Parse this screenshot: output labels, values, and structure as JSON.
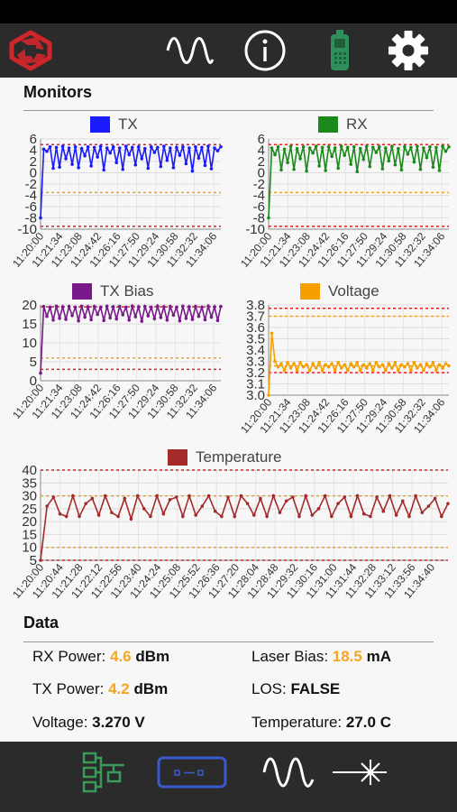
{
  "header": {
    "icons": [
      "logo-icon",
      "waveform-icon",
      "info-icon",
      "device-icon",
      "gear-icon"
    ]
  },
  "monitors": {
    "title": "Monitors"
  },
  "chart_data": [
    {
      "type": "line",
      "legend": "TX",
      "color": "#1a1aff",
      "ylim": [
        -10,
        6
      ],
      "yticks": [
        -10,
        -8,
        -6,
        -4,
        -2,
        0,
        2,
        4,
        6
      ],
      "thresholds": {
        "red": [
          5,
          -9.5
        ],
        "orange": [
          -3.5
        ]
      },
      "xticks": [
        "11:20:00",
        "11:21:34",
        "11:23:08",
        "11:24:42",
        "11:26:16",
        "11:27:50",
        "11:29:24",
        "11:30:58",
        "11:32:32",
        "11:34:06"
      ],
      "values": [
        -8,
        4.2,
        3.8,
        4.6,
        0.8,
        4.5,
        1,
        4.7,
        2.5,
        4.4,
        1.5,
        4.6,
        0.9,
        4.3,
        3,
        4.6,
        1.2,
        4.5,
        2.8,
        4.7,
        0.5,
        4.4,
        3.5,
        4.6,
        1.8,
        4.4,
        0.6,
        4.7,
        3.2,
        4.5,
        1.4,
        4.6,
        2.5,
        4.3,
        0.8,
        4.6,
        3.6,
        4.5,
        1.1,
        4.7,
        2.2,
        4.4,
        0.9,
        4.5,
        3.1,
        4.6,
        1.6,
        4.4,
        0.3,
        4.6,
        2.6,
        4.5,
        1.3,
        4.7,
        0.7,
        4.4,
        3.9,
        4.6
      ]
    },
    {
      "type": "line",
      "legend": "RX",
      "color": "#1a8a1a",
      "ylim": [
        -10,
        6
      ],
      "yticks": [
        -10,
        -8,
        -6,
        -4,
        -2,
        0,
        2,
        4,
        6
      ],
      "thresholds": {
        "red": [
          5,
          -9.5
        ],
        "orange": [
          -3.5
        ]
      },
      "xticks": [
        "11:20:00",
        "11:21:34",
        "11:23:08",
        "11:24:42",
        "11:26:16",
        "11:27:50",
        "11:29:24",
        "11:30:58",
        "11:32:32",
        "11:34:06"
      ],
      "values": [
        -8,
        4.4,
        3.2,
        4.6,
        0.5,
        4.2,
        1.8,
        4.7,
        0.6,
        4.3,
        2.5,
        4.6,
        0.3,
        4.4,
        3.5,
        4.7,
        1.2,
        4.5,
        0.4,
        4.6,
        2.9,
        4.4,
        0.8,
        4.7,
        3.1,
        4.5,
        1.5,
        4.6,
        0.2,
        4.3,
        2.4,
        4.7,
        1.1,
        4.5,
        3.6,
        4.6,
        0.7,
        4.4,
        2.1,
        4.7,
        1.4,
        4.3,
        0.5,
        4.6,
        3.3,
        4.5,
        1.9,
        4.7,
        0.6,
        4.4,
        2.7,
        4.6,
        1,
        4.5,
        0.4,
        4.7,
        3.8,
        4.6
      ]
    },
    {
      "type": "line",
      "legend": "TX Bias",
      "color": "#7a1a8a",
      "ylim": [
        0,
        20
      ],
      "yticks": [
        0,
        5,
        10,
        15,
        20
      ],
      "thresholds": {
        "red": [
          19.5,
          3
        ],
        "orange": [
          6
        ]
      },
      "xticks": [
        "11:20:00",
        "11:21:34",
        "11:23:08",
        "11:24:42",
        "11:26:16",
        "11:27:50",
        "11:29:24",
        "11:30:58",
        "11:32:32",
        "11:34:06"
      ],
      "values": [
        2,
        19.6,
        17,
        19.4,
        16,
        19.7,
        16.5,
        19.5,
        16.2,
        19.6,
        17.2,
        19.4,
        15.8,
        19.7,
        16.8,
        19.5,
        16.1,
        19.6,
        17.5,
        19.4,
        15.9,
        19.7,
        16.6,
        19.5,
        16.3,
        19.6,
        17.4,
        19.4,
        16,
        19.7,
        16.9,
        19.5,
        15.7,
        19.6,
        17.1,
        19.4,
        16.4,
        19.7,
        16.7,
        19.5,
        16,
        19.6,
        17.3,
        19.4,
        15.8,
        19.7,
        16.5,
        19.5,
        16.2,
        19.6,
        17,
        19.4,
        16.1,
        19.7,
        16.8,
        19.5,
        15.9,
        19.6
      ]
    },
    {
      "type": "line",
      "legend": "Voltage",
      "color": "#f5a000",
      "ylim": [
        3.0,
        3.8
      ],
      "yticks": [
        3.0,
        3.1,
        3.2,
        3.3,
        3.4,
        3.5,
        3.6,
        3.7,
        3.8
      ],
      "thresholds": {
        "red": [
          3.77,
          3.2
        ],
        "orange": [
          3.7,
          3.26
        ]
      },
      "xticks": [
        "11:20:00",
        "11:21:34",
        "11:23:08",
        "11:24:42",
        "11:26:16",
        "11:27:50",
        "11:29:24",
        "11:30:58",
        "11:32:32",
        "11:34:06"
      ],
      "values": [
        3.0,
        3.55,
        3.3,
        3.25,
        3.28,
        3.22,
        3.29,
        3.24,
        3.28,
        3.22,
        3.29,
        3.25,
        3.27,
        3.22,
        3.28,
        3.24,
        3.29,
        3.22,
        3.27,
        3.25,
        3.28,
        3.22,
        3.29,
        3.24,
        3.27,
        3.22,
        3.28,
        3.25,
        3.29,
        3.22,
        3.27,
        3.24,
        3.28,
        3.22,
        3.29,
        3.25,
        3.27,
        3.22,
        3.28,
        3.24,
        3.29,
        3.22,
        3.27,
        3.25,
        3.28,
        3.22,
        3.29,
        3.24,
        3.27,
        3.22,
        3.28,
        3.25,
        3.29,
        3.22,
        3.27,
        3.24,
        3.28,
        3.26
      ]
    },
    {
      "type": "line",
      "legend": "Temperature",
      "color": "#a52a2a",
      "ylim": [
        5,
        40
      ],
      "yticks": [
        5,
        10,
        15,
        20,
        25,
        30,
        35,
        40
      ],
      "thresholds": {
        "red": [
          40,
          5
        ],
        "orange": [
          30,
          10
        ]
      },
      "xticks": [
        "11:20:00",
        "11:20:44",
        "11:21:28",
        "11:22:12",
        "11:22:56",
        "11:23:40",
        "11:24:24",
        "11:25:08",
        "11:25:52",
        "11:26:36",
        "11:27:20",
        "11:28:04",
        "11:28:48",
        "11:29:32",
        "11:30:16",
        "11:31:00",
        "11:31:44",
        "11:32:28",
        "11:33:12",
        "11:33:56",
        "11:34:40"
      ],
      "values": [
        5,
        26,
        29.5,
        23,
        22,
        30,
        22,
        27,
        29,
        22.5,
        30,
        23.5,
        22,
        29,
        21,
        30,
        25,
        22,
        30,
        23,
        28.5,
        29.5,
        22,
        30,
        22.5,
        26,
        30,
        24,
        22,
        29.5,
        22,
        30,
        27,
        22.5,
        29,
        22,
        30,
        23.5,
        28,
        29.5,
        22,
        30,
        22.5,
        25,
        30,
        22,
        27,
        29.5,
        22,
        30,
        23,
        22,
        29.5,
        24,
        30,
        22.5,
        28,
        22,
        30,
        23.5,
        26,
        29,
        22,
        27
      ]
    }
  ],
  "data_section": {
    "title": "Data",
    "rx_power": {
      "label": "RX Power: ",
      "value": "4.6",
      "unit": " dBm"
    },
    "laser_bias": {
      "label": "Laser Bias: ",
      "value": "18.5",
      "unit": " mA"
    },
    "tx_power": {
      "label": "TX Power: ",
      "value": "4.2",
      "unit": " dBm"
    },
    "los": {
      "label": "LOS: ",
      "value": "FALSE"
    },
    "voltage": {
      "label": "Voltage: ",
      "value": "3.270 V"
    },
    "temperature": {
      "label": "Temperature: ",
      "value": "27.0 C"
    }
  },
  "footer": {
    "icons": [
      "network-icon",
      "transceiver-icon",
      "waveform-icon",
      "laser-icon"
    ]
  }
}
